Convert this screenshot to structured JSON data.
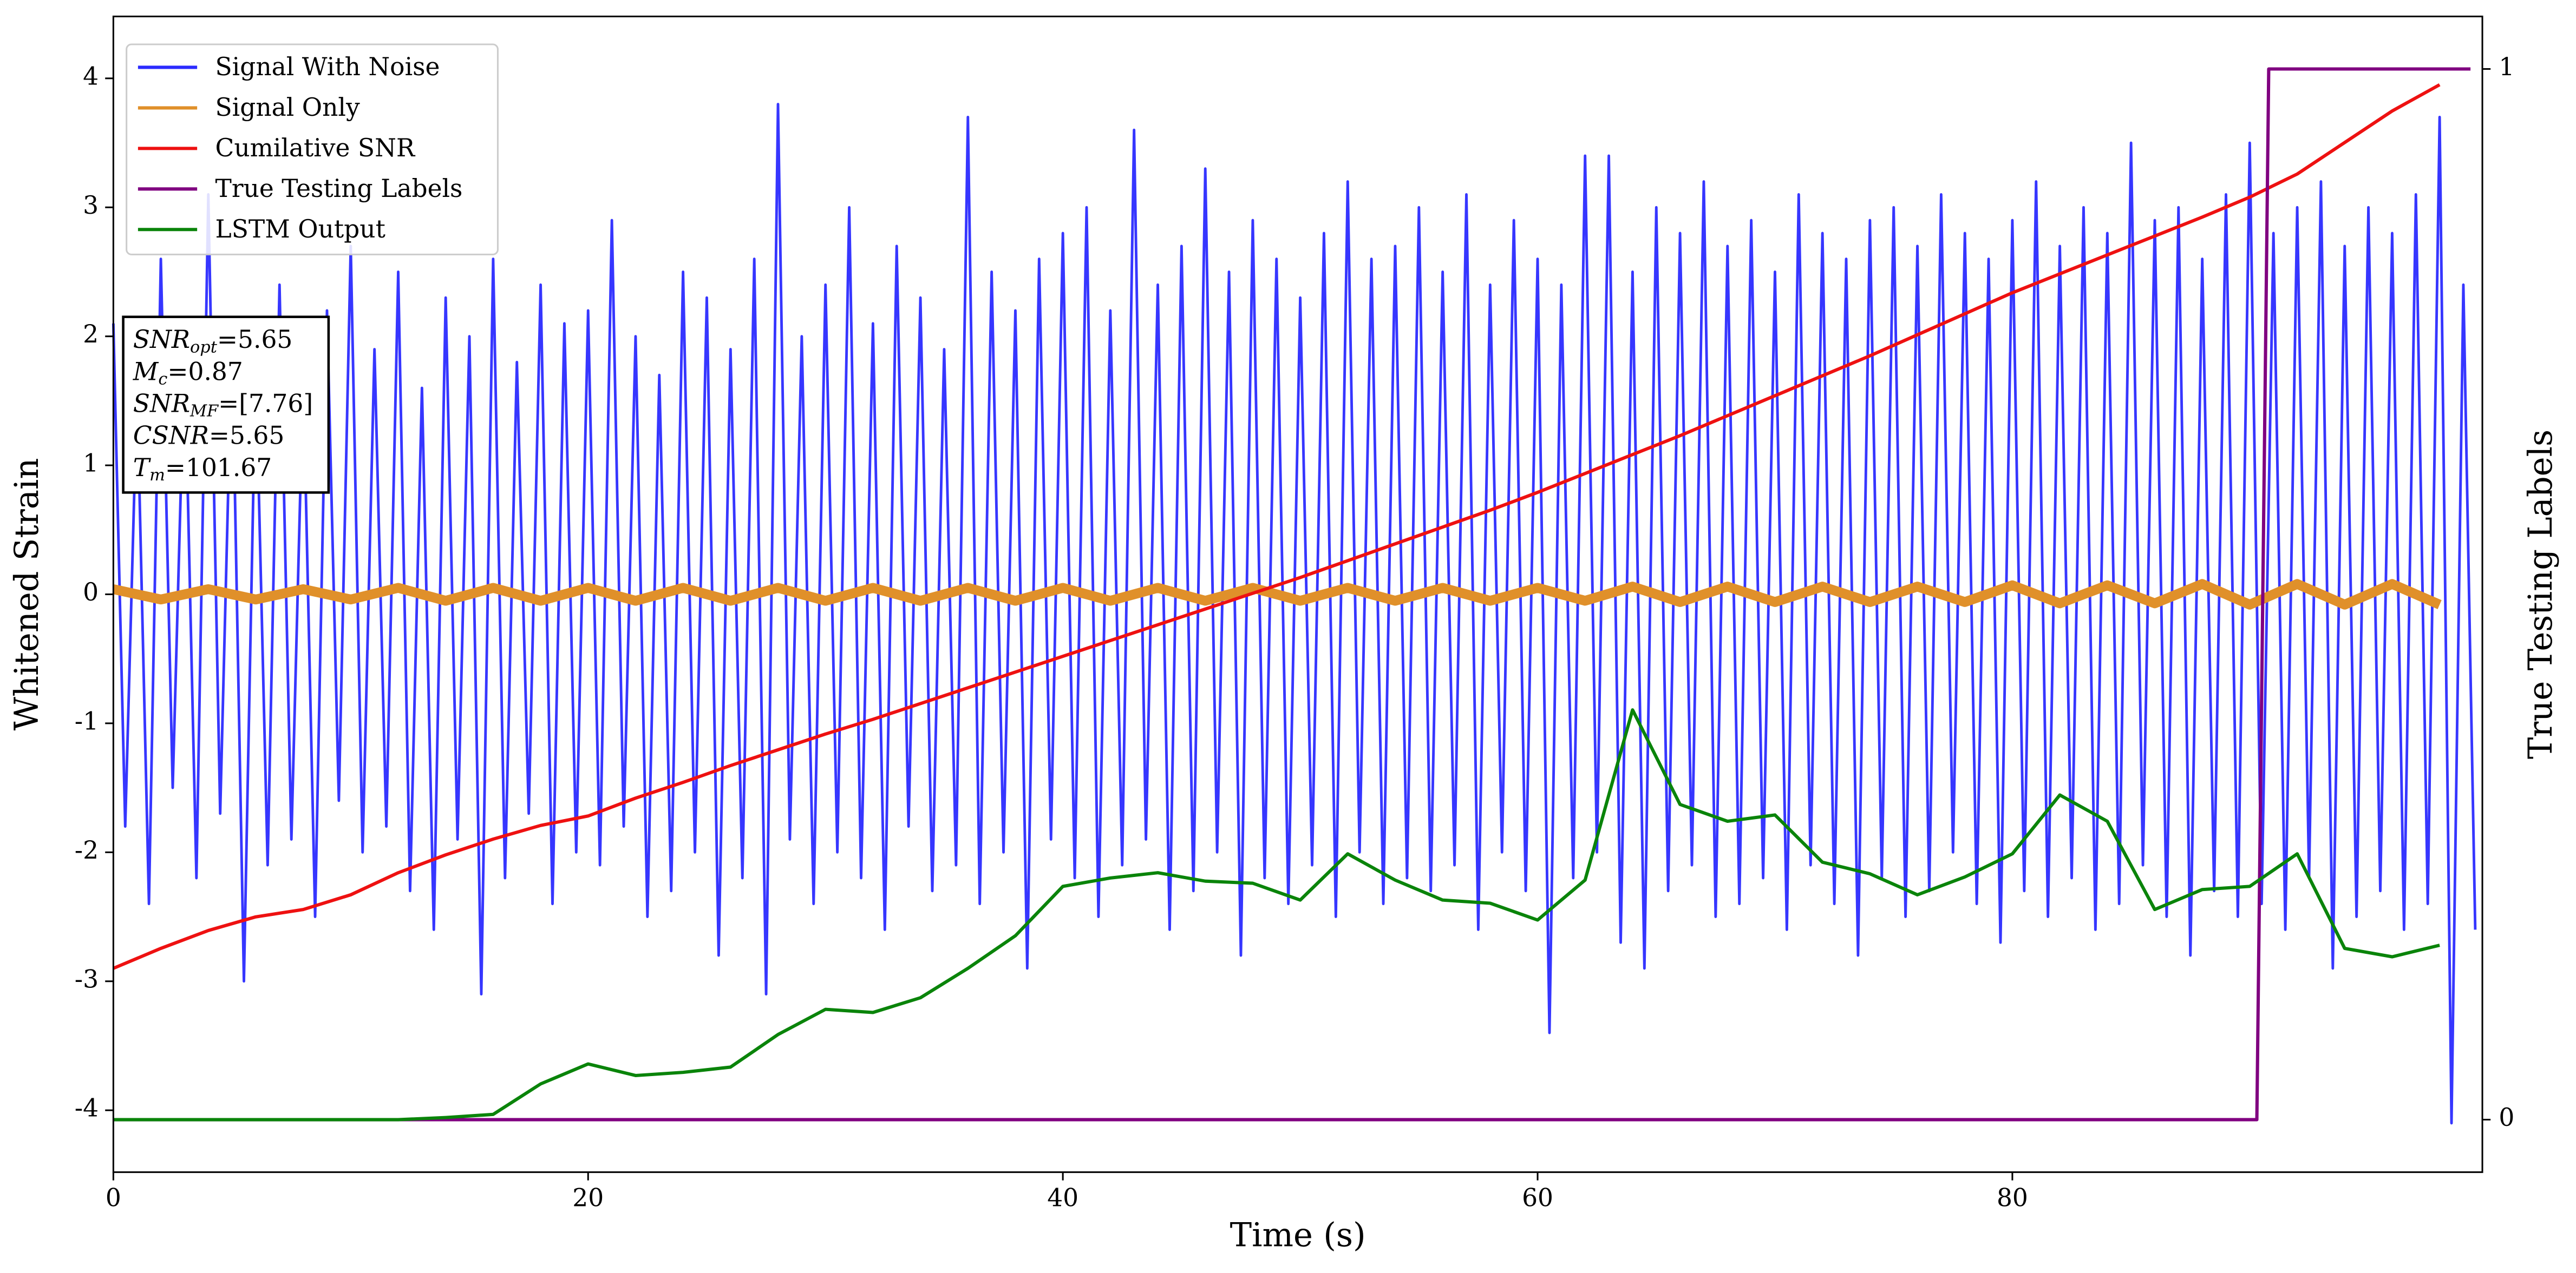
{
  "chart_data": {
    "type": "line",
    "xlabel": "Time (s)",
    "ylabel": "Whitened Strain",
    "y2label": "True Testing Labels",
    "xlim": [
      0,
      99.8
    ],
    "xticks": [
      0,
      20,
      40,
      60,
      80
    ],
    "ylim": [
      -4.48,
      4.48
    ],
    "yticks": [
      -4,
      -3,
      -2,
      -1,
      0,
      1,
      2,
      3,
      4
    ],
    "y2lim": [
      -0.05,
      1.05
    ],
    "y2ticks": [
      0,
      1
    ],
    "legend": "upper left",
    "x": [
      0,
      2,
      4,
      6,
      8,
      10,
      12,
      14,
      16,
      18,
      20,
      22,
      24,
      26,
      28,
      30,
      32,
      34,
      36,
      38,
      40,
      42,
      44,
      46,
      48,
      50,
      52,
      54,
      56,
      58,
      60,
      62,
      64,
      66,
      68,
      70,
      72,
      74,
      76,
      78,
      80,
      82,
      84,
      86,
      88,
      90,
      92,
      94,
      96,
      98
    ],
    "annotation": [
      {
        "base": "SNR",
        "sub": "opt",
        "rest": "=5.65"
      },
      {
        "base": "M",
        "sub": "c",
        "rest": "=0.87"
      },
      {
        "base": "SNR",
        "sub": "MF",
        "rest": "=[7.76]"
      },
      {
        "base": "CSNR",
        "rest": "=5.65"
      },
      {
        "base": "T",
        "sub": "m",
        "rest": "=101.67"
      }
    ],
    "series": [
      {
        "name": "Signal With Noise",
        "color": "#2b2bff",
        "axis": "y",
        "x": [
          0,
          0.5,
          1,
          1.5,
          2,
          2.5,
          3,
          3.5,
          4,
          4.5,
          5,
          5.5,
          6,
          6.5,
          7,
          7.5,
          8,
          8.5,
          9,
          9.5,
          10,
          10.5,
          11,
          11.5,
          12,
          12.5,
          13,
          13.5,
          14,
          14.5,
          15,
          15.5,
          16,
          16.5,
          17,
          17.5,
          18,
          18.5,
          19,
          19.5,
          20,
          20.5,
          21,
          21.5,
          22,
          22.5,
          23,
          23.5,
          24,
          24.5,
          25,
          25.5,
          26,
          26.5,
          27,
          27.5,
          28,
          28.5,
          29,
          29.5,
          30,
          30.5,
          31,
          31.5,
          32,
          32.5,
          33,
          33.5,
          34,
          34.5,
          35,
          35.5,
          36,
          36.5,
          37,
          37.5,
          38,
          38.5,
          39,
          39.5,
          40,
          40.5,
          41,
          41.5,
          42,
          42.5,
          43,
          43.5,
          44,
          44.5,
          45,
          45.5,
          46,
          46.5,
          47,
          47.5,
          48,
          48.5,
          49,
          49.5,
          50,
          50.5,
          51,
          51.5,
          52,
          52.5,
          53,
          53.5,
          54,
          54.5,
          55,
          55.5,
          56,
          56.5,
          57,
          57.5,
          58,
          58.5,
          59,
          59.5,
          60,
          60.5,
          61,
          61.5,
          62,
          62.5,
          63,
          63.5,
          64,
          64.5,
          65,
          65.5,
          66,
          66.5,
          67,
          67.5,
          68,
          68.5,
          69,
          69.5,
          70,
          70.5,
          71,
          71.5,
          72,
          72.5,
          73,
          73.5,
          74,
          74.5,
          75,
          75.5,
          76,
          76.5,
          77,
          77.5,
          78,
          78.5,
          79,
          79.5,
          80,
          80.5,
          81,
          81.5,
          82,
          82.5,
          83,
          83.5,
          84,
          84.5,
          85,
          85.5,
          86,
          86.5,
          87,
          87.5,
          88,
          88.5,
          89,
          89.5,
          90,
          90.5,
          91,
          91.5,
          92,
          92.5,
          93,
          93.5,
          94,
          94.5,
          95,
          95.5,
          96,
          96.5,
          97,
          97.5,
          98,
          98.5,
          99,
          99.5
        ],
        "values": [
          2.1,
          -1.8,
          1.6,
          -2.4,
          2.6,
          -1.5,
          1.9,
          -2.2,
          3.1,
          -1.7,
          2.0,
          -3.0,
          1.8,
          -2.1,
          2.4,
          -1.9,
          1.7,
          -2.5,
          2.2,
          -1.6,
          2.7,
          -2.0,
          1.9,
          -1.8,
          2.5,
          -2.3,
          1.6,
          -2.6,
          2.3,
          -1.9,
          2.0,
          -3.1,
          2.6,
          -2.2,
          1.8,
          -1.7,
          2.4,
          -2.4,
          2.1,
          -2.0,
          2.2,
          -2.1,
          2.9,
          -1.8,
          2.0,
          -2.5,
          1.7,
          -2.3,
          2.5,
          -2.0,
          2.3,
          -2.8,
          1.9,
          -2.2,
          2.6,
          -3.1,
          3.8,
          -1.9,
          2.0,
          -2.4,
          2.4,
          -2.0,
          3.0,
          -2.2,
          2.1,
          -2.6,
          2.7,
          -1.8,
          2.3,
          -2.3,
          1.9,
          -2.1,
          3.7,
          -2.4,
          2.5,
          -2.0,
          2.2,
          -2.9,
          2.6,
          -1.9,
          2.8,
          -2.2,
          3.0,
          -2.5,
          2.2,
          -2.1,
          3.6,
          -1.9,
          2.4,
          -2.6,
          2.7,
          -2.3,
          3.3,
          -2.0,
          2.5,
          -2.8,
          2.9,
          -2.2,
          2.6,
          -2.4,
          2.3,
          -2.1,
          2.8,
          -2.5,
          3.2,
          -2.0,
          2.6,
          -2.4,
          2.7,
          -2.2,
          3.0,
          -2.3,
          2.5,
          -2.1,
          3.1,
          -2.6,
          2.4,
          -2.0,
          2.9,
          -2.3,
          2.6,
          -3.4,
          2.4,
          -2.2,
          3.4,
          -2.0,
          3.4,
          -2.7,
          2.5,
          -2.9,
          3.0,
          -2.3,
          2.8,
          -2.1,
          3.2,
          -2.5,
          2.7,
          -2.4,
          2.9,
          -2.2,
          2.5,
          -2.6,
          3.1,
          -2.1,
          2.8,
          -2.4,
          2.6,
          -2.8,
          2.9,
          -2.2,
          3.0,
          -2.5,
          2.7,
          -2.3,
          3.1,
          -2.0,
          2.8,
          -2.4,
          2.6,
          -2.7,
          2.9,
          -2.3,
          3.2,
          -2.5,
          2.7,
          -2.2,
          3.0,
          -2.6,
          2.8,
          -2.4,
          3.5,
          -2.1,
          2.9,
          -2.5,
          3.0,
          -2.8,
          2.6,
          -2.3,
          3.1,
          -2.5,
          3.5,
          -2.4,
          2.8,
          -2.6,
          3.0,
          -2.2,
          3.2,
          -2.9,
          2.7,
          -2.5,
          3.0,
          -2.3,
          2.8,
          -2.6,
          3.1,
          -2.4,
          3.7,
          -4.1,
          2.4,
          -2.6
        ]
      },
      {
        "name": "Signal Only",
        "color": "#e0902a",
        "axis": "y",
        "values": [
          0.04,
          -0.04,
          0.04,
          -0.04,
          0.04,
          -0.04,
          0.05,
          -0.05,
          0.05,
          -0.05,
          0.05,
          -0.05,
          0.05,
          -0.05,
          0.05,
          -0.05,
          0.05,
          -0.05,
          0.05,
          -0.05,
          0.05,
          -0.05,
          0.05,
          -0.05,
          0.05,
          -0.05,
          0.05,
          -0.05,
          0.05,
          -0.05,
          0.05,
          -0.05,
          0.06,
          -0.06,
          0.06,
          -0.06,
          0.06,
          -0.06,
          0.06,
          -0.06,
          0.07,
          -0.07,
          0.07,
          -0.07,
          0.08,
          -0.08,
          0.08,
          -0.08,
          0.08,
          -0.08
        ]
      },
      {
        "name": "Cumilative SNR",
        "color": "#ee1111",
        "axis": "y2",
        "values": [
          0.144,
          0.163,
          0.18,
          0.193,
          0.2,
          0.214,
          0.235,
          0.252,
          0.267,
          0.28,
          0.289,
          0.306,
          0.321,
          0.337,
          0.352,
          0.367,
          0.381,
          0.396,
          0.411,
          0.426,
          0.441,
          0.456,
          0.471,
          0.486,
          0.501,
          0.516,
          0.532,
          0.548,
          0.564,
          0.58,
          0.597,
          0.615,
          0.633,
          0.651,
          0.67,
          0.689,
          0.708,
          0.727,
          0.747,
          0.767,
          0.787,
          0.805,
          0.823,
          0.841,
          0.859,
          0.878,
          0.9,
          0.93,
          0.96,
          0.985
        ]
      },
      {
        "name": "True Testing Labels",
        "color": "#800080",
        "axis": "y2",
        "x": [
          0,
          90.3,
          90.8,
          99.3
        ],
        "values": [
          0,
          0,
          1,
          1
        ]
      },
      {
        "name": "LSTM Output",
        "color": "#0a840a",
        "axis": "y2",
        "values": [
          0,
          0,
          0,
          0,
          0,
          0,
          0,
          0.002,
          0.005,
          0.034,
          0.053,
          0.042,
          0.045,
          0.05,
          0.081,
          0.105,
          0.102,
          0.116,
          0.144,
          0.175,
          0.222,
          0.23,
          0.235,
          0.227,
          0.225,
          0.209,
          0.253,
          0.228,
          0.209,
          0.206,
          0.19,
          0.228,
          0.39,
          0.3,
          0.284,
          0.29,
          0.245,
          0.234,
          0.214,
          0.231,
          0.253,
          0.309,
          0.284,
          0.2,
          0.219,
          0.222,
          0.253,
          0.163,
          0.155,
          0.166
        ]
      }
    ]
  }
}
